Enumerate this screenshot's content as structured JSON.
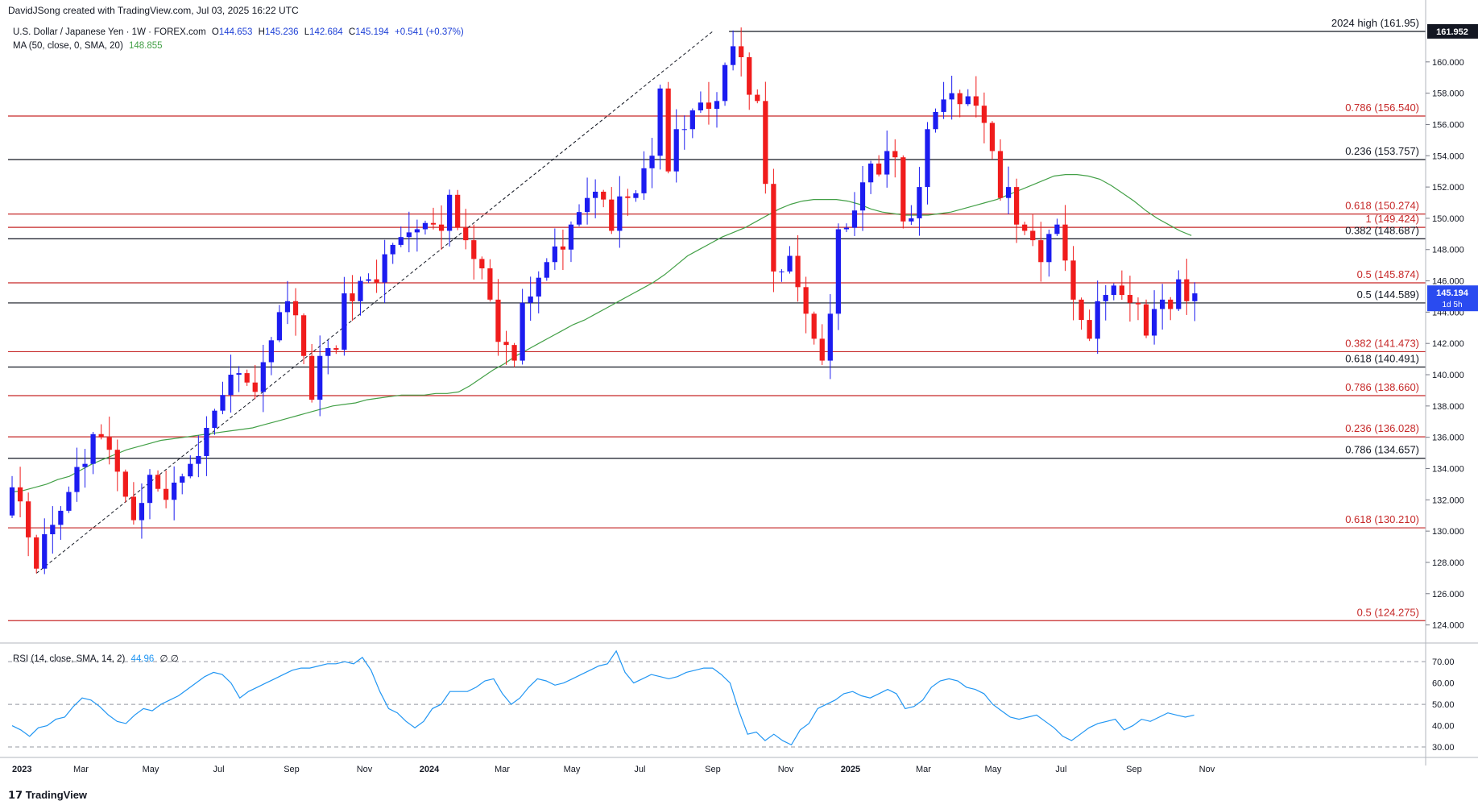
{
  "header": {
    "author": "DavidJSong created with TradingView.com, Jul 03, 2025 16:22 UTC",
    "symbol": "U.S. Dollar / Japanese Yen · 1W · FOREX.com",
    "o_label": "O",
    "o": "144.653",
    "h_label": "H",
    "h": "145.236",
    "l_label": "L",
    "l": "142.684",
    "c_label": "C",
    "c": "145.194",
    "change": "+0.541 (+0.37%)",
    "ma_label": "MA (50, close, 0, SMA, 20)",
    "ma_value": "148.855",
    "rsi_label": "RSI (14, close, SMA, 14, 2)",
    "rsi_value": "44.96",
    "rsi_extra": "∅ ∅"
  },
  "price_tag": {
    "value": "145.194",
    "countdown": "1d 5h"
  },
  "high_tag": "161.952",
  "footer_logo": "TradingView",
  "colors": {
    "up": "#1c1cf0",
    "down": "#f01c1c",
    "ma": "#43a047",
    "rsi": "#2196f3",
    "red_line": "#c62828",
    "black_line": "#131722"
  },
  "chart_data": {
    "type": "candlestick",
    "title": "U.S. Dollar / Japanese Yen · 1W · FOREX.com",
    "x_ticks": [
      "2023",
      "Mar",
      "May",
      "Jul",
      "Sep",
      "Nov",
      "2024",
      "Mar",
      "May",
      "Jul",
      "Sep",
      "Nov",
      "2025",
      "Mar",
      "May",
      "Jul",
      "Sep",
      "Nov"
    ],
    "y_ticks": [
      "124.000",
      "126.000",
      "128.000",
      "130.000",
      "132.000",
      "134.000",
      "136.000",
      "138.000",
      "140.000",
      "142.000",
      "144.000",
      "146.000",
      "148.000",
      "150.000",
      "152.000",
      "154.000",
      "156.000",
      "158.000",
      "160.000"
    ],
    "ylim": [
      123.0,
      162.0
    ],
    "x_range_weeks": [
      0,
      175
    ],
    "tick_weeks": [
      0,
      9,
      17.6,
      26,
      35,
      44,
      52,
      61,
      69.6,
      78,
      87,
      96,
      104,
      113,
      121.6,
      130,
      139,
      148
    ],
    "levels": [
      {
        "label": "2024 high (161.95)",
        "value": 161.95,
        "color": "black"
      },
      {
        "label": "0.786 (156.540)",
        "value": 156.54,
        "color": "red"
      },
      {
        "label": "0.236 (153.757)",
        "value": 153.757,
        "color": "black"
      },
      {
        "label": "0.618 (150.274)",
        "value": 150.274,
        "color": "red"
      },
      {
        "label": "1 (149.424)",
        "value": 149.424,
        "color": "red"
      },
      {
        "label": "0.382 (148.687)",
        "value": 148.687,
        "color": "black"
      },
      {
        "label": "0.5 (145.874)",
        "value": 145.874,
        "color": "red"
      },
      {
        "label": "0.5 (144.589)",
        "value": 144.589,
        "color": "black"
      },
      {
        "label": "0.382 (141.473)",
        "value": 141.473,
        "color": "red"
      },
      {
        "label": "0.618 (140.491)",
        "value": 140.491,
        "color": "black"
      },
      {
        "label": "0.786 (138.660)",
        "value": 138.66,
        "color": "red"
      },
      {
        "label": "0.236 (136.028)",
        "value": 136.028,
        "color": "red"
      },
      {
        "label": "0.786 (134.657)",
        "value": 134.657,
        "color": "black"
      },
      {
        "label": "0.618 (130.210)",
        "value": 130.21,
        "color": "red"
      },
      {
        "label": "0.5 (124.275)",
        "value": 124.275,
        "color": "red"
      }
    ],
    "closes": [
      132.8,
      131.9,
      129.6,
      127.6,
      129.8,
      130.4,
      131.3,
      132.5,
      134.1,
      134.3,
      136.2,
      136.0,
      135.2,
      133.8,
      132.2,
      130.7,
      131.8,
      133.6,
      132.7,
      132.0,
      133.1,
      133.5,
      134.3,
      134.8,
      136.6,
      137.7,
      138.7,
      140.0,
      140.1,
      139.5,
      138.9,
      140.8,
      142.2,
      144.0,
      144.7,
      143.8,
      141.2,
      138.4,
      141.2,
      141.7,
      141.6,
      145.2,
      144.7,
      146.0,
      146.1,
      145.9,
      147.7,
      148.3,
      148.8,
      149.1,
      149.3,
      149.7,
      149.6,
      149.2,
      151.5,
      149.4,
      148.6,
      147.4,
      146.8,
      144.8,
      142.1,
      141.9,
      140.9,
      144.6,
      145.0,
      146.2,
      147.2,
      148.2,
      148.0,
      149.6,
      150.4,
      151.3,
      151.7,
      151.2,
      149.2,
      151.4,
      151.3,
      151.6,
      153.2,
      154.0,
      158.3,
      153.0,
      155.7,
      155.7,
      156.9,
      157.4,
      157.0,
      157.5,
      159.8,
      161.0,
      160.3,
      157.9,
      157.5,
      152.2,
      146.6,
      146.6,
      147.6,
      145.6,
      143.9,
      142.3,
      140.9,
      143.9,
      149.3,
      149.4,
      150.5,
      152.3,
      153.5,
      152.8,
      154.3,
      153.9,
      149.8,
      150.0,
      152.0,
      155.7,
      156.8,
      157.6,
      158.0,
      157.3,
      157.8,
      157.2,
      156.1,
      154.3,
      151.3,
      152.0,
      149.6,
      149.2,
      148.6,
      147.2,
      149.0,
      149.6,
      147.3,
      144.8,
      143.5,
      142.3,
      144.7,
      145.1,
      145.7,
      145.1,
      144.6,
      144.5,
      142.5,
      144.2,
      144.8,
      144.2,
      146.1,
      144.7,
      145.2
    ],
    "ma50": [
      132.5,
      132.6,
      132.8,
      133.0,
      133.3,
      133.5,
      133.9,
      134.3,
      134.6,
      134.9,
      135.2,
      135.4,
      135.6,
      135.8,
      135.9,
      136.0,
      136.1,
      136.2,
      136.3,
      136.4,
      136.5,
      136.6,
      136.8,
      137.0,
      137.2,
      137.4,
      137.6,
      137.8,
      138.0,
      138.1,
      138.2,
      138.4,
      138.5,
      138.6,
      138.7,
      138.7,
      138.7,
      138.8,
      138.8,
      138.9,
      139.3,
      139.8,
      140.3,
      140.7,
      141.2,
      141.6,
      142.0,
      142.4,
      142.8,
      143.2,
      143.5,
      143.9,
      144.3,
      144.7,
      145.1,
      145.5,
      145.9,
      146.4,
      147.0,
      147.6,
      148.0,
      148.4,
      148.8,
      149.1,
      149.4,
      149.8,
      150.2,
      150.6,
      150.9,
      151.1,
      151.2,
      151.2,
      151.2,
      151.1,
      150.9,
      150.6,
      150.4,
      150.3,
      150.2,
      150.2,
      150.2,
      150.3,
      150.4,
      150.6,
      150.8,
      151.0,
      151.2,
      151.5,
      151.8,
      152.1,
      152.4,
      152.7,
      152.8,
      152.8,
      152.7,
      152.5,
      152.1,
      151.6,
      151.1,
      150.5,
      150.0,
      149.6,
      149.2,
      148.9
    ],
    "ma50_start_week": 0,
    "rsi_ticks": [
      "70.00",
      "60.00",
      "50.00",
      "40.00",
      "30.00"
    ],
    "rsi_ylim": [
      27,
      78
    ],
    "rsi": [
      40,
      38,
      35,
      39,
      40,
      43,
      44,
      49,
      53,
      52,
      49,
      45,
      42,
      41,
      45,
      48,
      47,
      50,
      52,
      54,
      57,
      60,
      63,
      65,
      64,
      60,
      53,
      56,
      58,
      60,
      62,
      64,
      66,
      67,
      67,
      68,
      69,
      69,
      70,
      69,
      72,
      66,
      56,
      48,
      46,
      42,
      39,
      42,
      48,
      50,
      56,
      56,
      56,
      58,
      61,
      62,
      55,
      50,
      53,
      58,
      62,
      61,
      59,
      60,
      62,
      64,
      66,
      68,
      69,
      75,
      65,
      60,
      62,
      64,
      63,
      62,
      63,
      65,
      66,
      67,
      67,
      64,
      60,
      47,
      36,
      37,
      33,
      36,
      33,
      31,
      38,
      41,
      48,
      50,
      52,
      55,
      56,
      54,
      53,
      55,
      57,
      55,
      48,
      49,
      52,
      58,
      61,
      62,
      61,
      58,
      57,
      55,
      50,
      47,
      44,
      43,
      44,
      45,
      42,
      39,
      35,
      33,
      36,
      39,
      41,
      42,
      43,
      38,
      40,
      43,
      42,
      44,
      46,
      45,
      44,
      45
    ]
  }
}
